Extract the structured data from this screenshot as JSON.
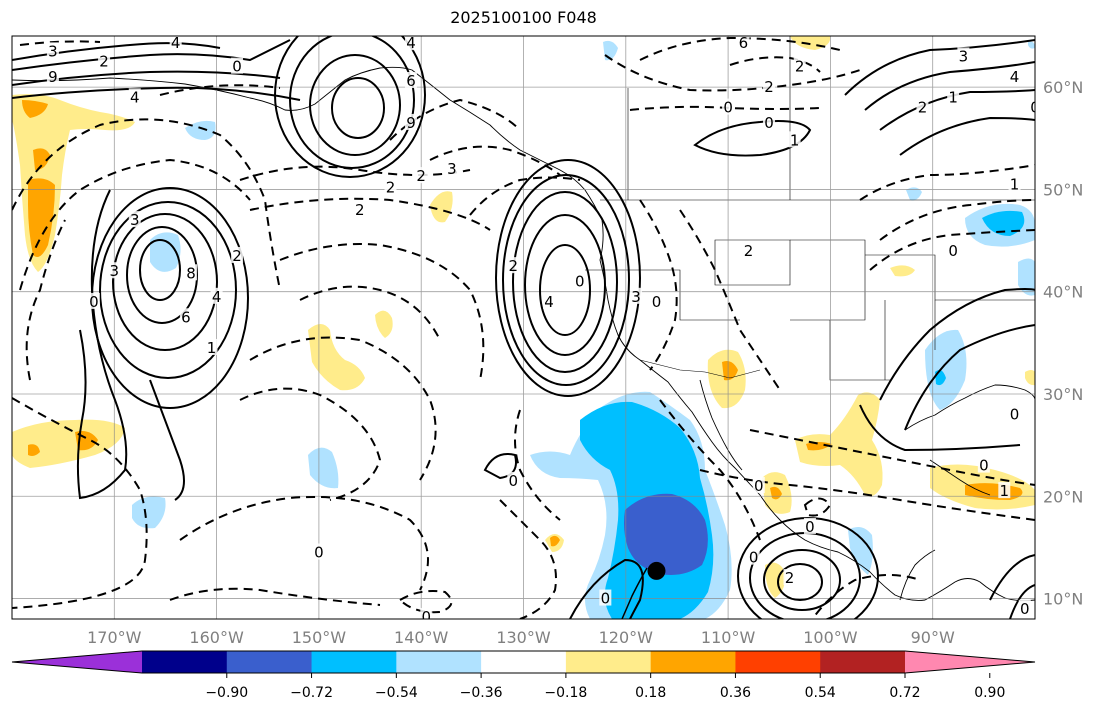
{
  "title": "2025100100 F048",
  "map": {
    "lon_min": -180,
    "lon_max": -80,
    "lat_min": 8,
    "lat_max": 65,
    "lon_ticks": [
      -170,
      -160,
      -150,
      -140,
      -130,
      -120,
      -110,
      -100,
      -90
    ],
    "lon_labels": [
      "170°W",
      "160°W",
      "150°W",
      "140°W",
      "130°W",
      "120°W",
      "110°W",
      "100°W",
      "90°W"
    ],
    "lat_ticks": [
      10,
      20,
      30,
      40,
      50,
      60
    ],
    "lat_labels": [
      "10°N",
      "20°N",
      "30°N",
      "40°N",
      "50°N",
      "60°N"
    ],
    "grid": true,
    "storm_marker": {
      "lon": -117,
      "lat": 12.7
    }
  },
  "colorbar": {
    "ticks": [
      -0.9,
      -0.72,
      -0.54,
      -0.36,
      -0.18,
      0.18,
      0.36,
      0.54,
      0.72,
      0.9
    ],
    "tick_labels": [
      "−0.90",
      "−0.72",
      "−0.54",
      "−0.36",
      "−0.18",
      "0.18",
      "0.36",
      "0.54",
      "0.72",
      "0.90"
    ],
    "colors": [
      "#9b30d9",
      "#00008b",
      "#3a5fcd",
      "#00bfff",
      "#b0e2ff",
      "#ffffff",
      "#ffec8b",
      "#ffa500",
      "#ff4000",
      "#b22222",
      "#ff88b0"
    ],
    "extend": "both"
  },
  "contour_labels": [
    {
      "t": "3",
      "lon": -176,
      "lat": 63.5
    },
    {
      "t": "2",
      "lon": -171,
      "lat": 62.5
    },
    {
      "t": "4",
      "lon": -164,
      "lat": 64.3
    },
    {
      "t": "0",
      "lon": -158,
      "lat": 62.0
    },
    {
      "t": "9",
      "lon": -176,
      "lat": 61.0
    },
    {
      "t": "4",
      "lon": -168,
      "lat": 59.0
    },
    {
      "t": "4",
      "lon": -141,
      "lat": 64.3
    },
    {
      "t": "6",
      "lon": -141,
      "lat": 60.6
    },
    {
      "t": "9",
      "lon": -141,
      "lat": 56.5
    },
    {
      "t": "3",
      "lon": -168,
      "lat": 47.0
    },
    {
      "t": "2",
      "lon": -140,
      "lat": 51.3
    },
    {
      "t": "3",
      "lon": -137,
      "lat": 52.0
    },
    {
      "t": "2",
      "lon": -143,
      "lat": 50.2
    },
    {
      "t": "2",
      "lon": -146,
      "lat": 48.0
    },
    {
      "t": "3",
      "lon": -170,
      "lat": 42.0
    },
    {
      "t": "8",
      "lon": -162.5,
      "lat": 41.8
    },
    {
      "t": "2",
      "lon": -158,
      "lat": 43.5
    },
    {
      "t": "4",
      "lon": -160,
      "lat": 39.5
    },
    {
      "t": "6",
      "lon": -163,
      "lat": 37.5
    },
    {
      "t": "1",
      "lon": -160.5,
      "lat": 34.5
    },
    {
      "t": "0",
      "lon": -172,
      "lat": 39.0
    },
    {
      "t": "2",
      "lon": -131,
      "lat": 42.5
    },
    {
      "t": "4",
      "lon": -127.5,
      "lat": 39.0
    },
    {
      "t": "0",
      "lon": -124.5,
      "lat": 41.0
    },
    {
      "t": "3",
      "lon": -119,
      "lat": 39.5
    },
    {
      "t": "0",
      "lon": -117,
      "lat": 39.0
    },
    {
      "t": "6",
      "lon": -108.5,
      "lat": 64.3
    },
    {
      "t": "2",
      "lon": -103,
      "lat": 62.0
    },
    {
      "t": "2",
      "lon": -106,
      "lat": 60.0
    },
    {
      "t": "0",
      "lon": -110,
      "lat": 58.0
    },
    {
      "t": "0",
      "lon": -106,
      "lat": 56.5
    },
    {
      "t": "1",
      "lon": -103.5,
      "lat": 54.8
    },
    {
      "t": "3",
      "lon": -87,
      "lat": 63.0
    },
    {
      "t": "4",
      "lon": -82,
      "lat": 61.0
    },
    {
      "t": "2",
      "lon": -91,
      "lat": 58.0
    },
    {
      "t": "1",
      "lon": -88,
      "lat": 59.0
    },
    {
      "t": "0",
      "lon": -80,
      "lat": 58.0
    },
    {
      "t": "1",
      "lon": -82,
      "lat": 50.5
    },
    {
      "t": "2",
      "lon": -108,
      "lat": 44.0
    },
    {
      "t": "0",
      "lon": -88,
      "lat": 44.0
    },
    {
      "t": "0",
      "lon": -82,
      "lat": 28.0
    },
    {
      "t": "0",
      "lon": -85,
      "lat": 23.0
    },
    {
      "t": "1",
      "lon": -83,
      "lat": 20.5
    },
    {
      "t": "0",
      "lon": -150,
      "lat": 14.5
    },
    {
      "t": "0",
      "lon": -131,
      "lat": 21.5
    },
    {
      "t": "0",
      "lon": -139.5,
      "lat": 8.2
    },
    {
      "t": "0",
      "lon": -102,
      "lat": 17.0
    },
    {
      "t": "0",
      "lon": -107.5,
      "lat": 14.0
    },
    {
      "t": "2",
      "lon": -104,
      "lat": 12.0
    },
    {
      "t": "0",
      "lon": -107,
      "lat": 21.0
    },
    {
      "t": "0",
      "lon": -122,
      "lat": 10.0
    },
    {
      "t": "0",
      "lon": -81,
      "lat": 9.0
    }
  ]
}
